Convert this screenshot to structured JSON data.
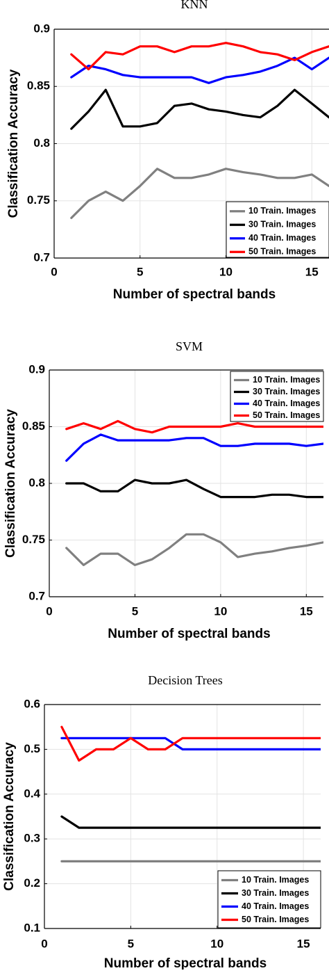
{
  "chart_data": [
    {
      "type": "line",
      "title": "KNN",
      "xlabel": "Number of spectral bands",
      "ylabel": "Classification Accuracy",
      "xlim": [
        0,
        16
      ],
      "ylim": [
        0.7,
        0.9
      ],
      "xticks": [
        0,
        5,
        10,
        15
      ],
      "yticks": [
        0.7,
        0.75,
        0.8,
        0.85,
        0.9
      ],
      "ytick_labels": [
        "0.7",
        "0.75",
        "0.8",
        "0.85",
        "0.9"
      ],
      "grid": true,
      "legend_position": "bottom-right",
      "x": [
        1,
        2,
        3,
        4,
        5,
        6,
        7,
        8,
        9,
        10,
        11,
        12,
        13,
        14,
        15,
        16
      ],
      "series": [
        {
          "name": "10 Train. Images",
          "color": "#808080",
          "values": [
            0.735,
            0.75,
            0.758,
            0.75,
            0.763,
            0.778,
            0.77,
            0.77,
            0.773,
            0.778,
            0.775,
            0.773,
            0.77,
            0.77,
            0.773,
            0.763
          ]
        },
        {
          "name": "30 Train. Images",
          "color": "#000000",
          "values": [
            0.813,
            0.828,
            0.847,
            0.815,
            0.815,
            0.818,
            0.833,
            0.835,
            0.83,
            0.828,
            0.825,
            0.823,
            0.833,
            0.847,
            0.835,
            0.823
          ]
        },
        {
          "name": "40 Train. Images",
          "color": "#0000ff",
          "values": [
            0.858,
            0.868,
            0.865,
            0.86,
            0.858,
            0.858,
            0.858,
            0.858,
            0.853,
            0.858,
            0.86,
            0.863,
            0.868,
            0.875,
            0.865,
            0.875
          ]
        },
        {
          "name": "50 Train. Images",
          "color": "#ff0000",
          "values": [
            0.878,
            0.865,
            0.88,
            0.878,
            0.885,
            0.885,
            0.88,
            0.885,
            0.885,
            0.888,
            0.885,
            0.88,
            0.878,
            0.873,
            0.88,
            0.885
          ]
        }
      ]
    },
    {
      "type": "line",
      "title": "SVM",
      "xlabel": "Number of spectral bands",
      "ylabel": "Classification Accuracy",
      "xlim": [
        0,
        16
      ],
      "ylim": [
        0.7,
        0.9
      ],
      "xticks": [
        0,
        5,
        10,
        15
      ],
      "yticks": [
        0.7,
        0.75,
        0.8,
        0.85,
        0.9
      ],
      "ytick_labels": [
        "0.7",
        "0.75",
        "0.8",
        "0.85",
        "0.9"
      ],
      "grid": true,
      "legend_position": "top-right",
      "x": [
        1,
        2,
        3,
        4,
        5,
        6,
        7,
        8,
        9,
        10,
        11,
        12,
        13,
        14,
        15,
        16
      ],
      "series": [
        {
          "name": "10 Train. Images",
          "color": "#808080",
          "values": [
            0.743,
            0.728,
            0.738,
            0.738,
            0.728,
            0.733,
            0.743,
            0.755,
            0.755,
            0.748,
            0.735,
            0.738,
            0.74,
            0.743,
            0.745,
            0.748
          ]
        },
        {
          "name": "30 Train. Images",
          "color": "#000000",
          "values": [
            0.8,
            0.8,
            0.793,
            0.793,
            0.803,
            0.8,
            0.8,
            0.803,
            0.795,
            0.788,
            0.788,
            0.788,
            0.79,
            0.79,
            0.788,
            0.788
          ]
        },
        {
          "name": "40 Train. Images",
          "color": "#0000ff",
          "values": [
            0.82,
            0.835,
            0.843,
            0.838,
            0.838,
            0.838,
            0.838,
            0.84,
            0.84,
            0.833,
            0.833,
            0.835,
            0.835,
            0.835,
            0.833,
            0.835
          ]
        },
        {
          "name": "50 Train. Images",
          "color": "#ff0000",
          "values": [
            0.848,
            0.853,
            0.848,
            0.855,
            0.848,
            0.845,
            0.85,
            0.85,
            0.85,
            0.85,
            0.853,
            0.85,
            0.85,
            0.85,
            0.85,
            0.85
          ]
        }
      ]
    },
    {
      "type": "line",
      "title": "Decision Trees",
      "xlabel": "Number of spectral bands",
      "ylabel": "Classification Accuracy",
      "xlim": [
        0,
        16
      ],
      "ylim": [
        0.1,
        0.6
      ],
      "xticks": [
        0,
        5,
        10,
        15
      ],
      "yticks": [
        0.1,
        0.2,
        0.3,
        0.4,
        0.5,
        0.6
      ],
      "ytick_labels": [
        "0.1",
        "0.2",
        "0.3",
        "0.4",
        "0.5",
        "0.6"
      ],
      "grid": true,
      "legend_position": "bottom-right",
      "x": [
        1,
        2,
        3,
        4,
        5,
        6,
        7,
        8,
        9,
        10,
        11,
        12,
        13,
        14,
        15,
        16
      ],
      "series": [
        {
          "name": "10 Train. Images",
          "color": "#808080",
          "values": [
            0.25,
            0.25,
            0.25,
            0.25,
            0.25,
            0.25,
            0.25,
            0.25,
            0.25,
            0.25,
            0.25,
            0.25,
            0.25,
            0.25,
            0.25,
            0.25
          ]
        },
        {
          "name": "30 Train. Images",
          "color": "#000000",
          "values": [
            0.35,
            0.325,
            0.325,
            0.325,
            0.325,
            0.325,
            0.325,
            0.325,
            0.325,
            0.325,
            0.325,
            0.325,
            0.325,
            0.325,
            0.325,
            0.325
          ]
        },
        {
          "name": "40 Train. Images",
          "color": "#0000ff",
          "values": [
            0.525,
            0.525,
            0.525,
            0.525,
            0.525,
            0.525,
            0.525,
            0.5,
            0.5,
            0.5,
            0.5,
            0.5,
            0.5,
            0.5,
            0.5,
            0.5
          ]
        },
        {
          "name": "50 Train. Images",
          "color": "#ff0000",
          "values": [
            0.55,
            0.475,
            0.5,
            0.5,
            0.525,
            0.5,
            0.5,
            0.525,
            0.525,
            0.525,
            0.525,
            0.525,
            0.525,
            0.525,
            0.525,
            0.525
          ]
        }
      ]
    }
  ]
}
